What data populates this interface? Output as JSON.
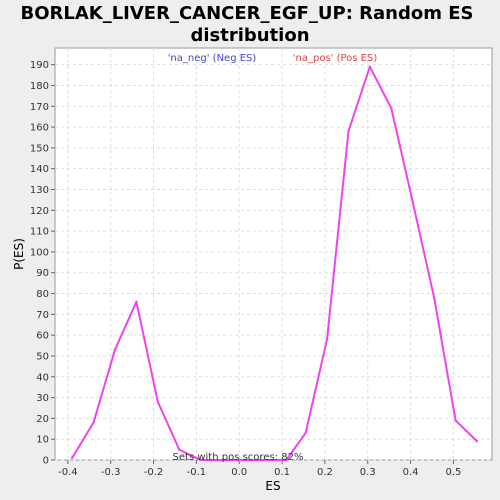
{
  "chart_data": {
    "type": "line",
    "title_lines": [
      "BORLAK_LIVER_CANCER_EGF_UP: Random ES",
      "distribution"
    ],
    "xlabel": "ES",
    "ylabel": "P(ES)",
    "xlim": [
      -0.43,
      0.59
    ],
    "ylim": [
      0,
      198
    ],
    "x_ticks": [
      -0.4,
      -0.3,
      -0.2,
      -0.1,
      0.0,
      0.1,
      0.2,
      0.3,
      0.4,
      0.5
    ],
    "x_tick_labels": [
      "-0.4",
      "-0.3",
      "-0.2",
      "-0.1",
      "0.0",
      "0.1",
      "0.2",
      "0.3",
      "0.4",
      "0.5"
    ],
    "y_ticks": [
      0,
      10,
      20,
      30,
      40,
      50,
      60,
      70,
      80,
      90,
      100,
      110,
      120,
      130,
      140,
      150,
      160,
      170,
      180,
      190
    ],
    "y_tick_labels": [
      "0",
      "10",
      "20",
      "30",
      "40",
      "50",
      "60",
      "70",
      "80",
      "90",
      "100",
      "110",
      "120",
      "130",
      "140",
      "150",
      "160",
      "170",
      "180",
      "190"
    ],
    "grid": true,
    "legend": [
      {
        "label": "'na_neg' (Neg ES)",
        "color": "#4444cc"
      },
      {
        "label": "'na_pos' (Pos ES)",
        "color": "#dd4444"
      }
    ],
    "annotation": "Sets with pos scores: 82%",
    "series": [
      {
        "line_color": "#ee44ee",
        "points": [
          {
            "x": -0.39,
            "y": 1
          },
          {
            "x": -0.34,
            "y": 18
          },
          {
            "x": -0.29,
            "y": 53
          },
          {
            "x": -0.24,
            "y": 76
          },
          {
            "x": -0.19,
            "y": 28
          },
          {
            "x": -0.14,
            "y": 5
          },
          {
            "x": -0.09,
            "y": 0
          },
          {
            "x": -0.04,
            "y": 0
          },
          {
            "x": 0.01,
            "y": 0
          },
          {
            "x": 0.06,
            "y": 0
          },
          {
            "x": 0.11,
            "y": 0
          },
          {
            "x": 0.155,
            "y": 13
          },
          {
            "x": 0.205,
            "y": 58
          },
          {
            "x": 0.255,
            "y": 158
          },
          {
            "x": 0.305,
            "y": 189
          },
          {
            "x": 0.355,
            "y": 169
          },
          {
            "x": 0.405,
            "y": 124
          },
          {
            "x": 0.455,
            "y": 78
          },
          {
            "x": 0.505,
            "y": 19
          },
          {
            "x": 0.555,
            "y": 9
          }
        ]
      }
    ]
  }
}
